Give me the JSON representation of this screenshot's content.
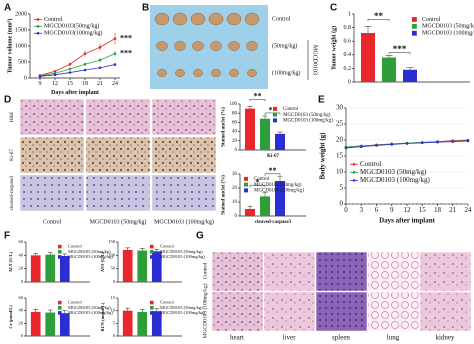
{
  "panel_letters": [
    "A",
    "B",
    "C",
    "D",
    "E",
    "F",
    "G"
  ],
  "photos": {
    "B": {
      "rows": [
        "Control",
        "(50mg/kg)",
        "(100mg/kg)"
      ],
      "group": "MGCD0103"
    },
    "D": {
      "rows": [
        "H&E",
        "Ki-67",
        "cleaved-caspase3"
      ],
      "columns": [
        "Control",
        "MGCD0103 (50mg/kg)",
        "MGCD0103 (100mg/kg)"
      ]
    },
    "G": {
      "rows": [
        "Control",
        "MGCD0103 (100mg/kg)"
      ],
      "columns": [
        "heart",
        "liver",
        "spleen",
        "lung",
        "kidney"
      ]
    }
  },
  "chart_data": [
    {
      "type": "line",
      "ylabel": "Tumor volume (mm³)",
      "xlabel": "Days after implant",
      "x": [
        9,
        12,
        15,
        18,
        21,
        24
      ],
      "xlim": [
        7,
        25
      ],
      "xticks": [
        9,
        12,
        15,
        18,
        21,
        24
      ],
      "ylim": [
        0,
        2000
      ],
      "yticks": [
        0,
        500,
        1000,
        1500,
        2000
      ],
      "legend": "upper left",
      "annotations": [
        "***",
        "***"
      ],
      "series": [
        {
          "name": "Control",
          "color": "#e8262b",
          "values": [
            80,
            210,
            430,
            760,
            960,
            1230
          ],
          "errors": [
            15,
            30,
            60,
            90,
            110,
            180
          ]
        },
        {
          "name": "MGCD0103(50mg/kg)",
          "color": "#2e9e3a",
          "values": [
            60,
            150,
            280,
            430,
            560,
            760
          ],
          "errors": [
            10,
            20,
            40,
            50,
            60,
            80
          ]
        },
        {
          "name": "MGCD0103(100mg/kg)",
          "color": "#2b2fd1",
          "values": [
            50,
            100,
            170,
            250,
            320,
            420
          ],
          "errors": [
            8,
            15,
            20,
            30,
            40,
            50
          ]
        }
      ]
    },
    {
      "type": "bar",
      "ylabel": "Tumor weight (g)",
      "ylim": [
        0,
        1
      ],
      "yticks": [
        0,
        0.2,
        0.4,
        0.6,
        0.8,
        1
      ],
      "legend": "upper right",
      "annotations": [
        "**",
        "***"
      ],
      "series": [
        {
          "name": "Control",
          "color": "#e8262b",
          "values": [
            0.72
          ],
          "errors": [
            0.1
          ]
        },
        {
          "name": "MGCD0103 (50mg/kg)",
          "color": "#2e9e3a",
          "values": [
            0.36
          ],
          "errors": [
            0.03
          ]
        },
        {
          "name": "MGCD0103 (100mg/kg)",
          "color": "#2b2fd1",
          "values": [
            0.18
          ],
          "errors": [
            0.03
          ]
        }
      ]
    },
    {
      "type": "bar",
      "ylabel": "Stained nuclei (%)",
      "xlabel": "Ki-67",
      "ylim": [
        0,
        100
      ],
      "yticks": [
        0,
        20,
        40,
        60,
        80,
        100
      ],
      "legend": "upper right",
      "annotations": [
        "**",
        "**"
      ],
      "series": [
        {
          "name": "Control",
          "color": "#e8262b",
          "values": [
            90
          ],
          "errors": [
            5
          ]
        },
        {
          "name": "MGCD0103 (50mg/kg)",
          "color": "#2e9e3a",
          "values": [
            68
          ],
          "errors": [
            6
          ]
        },
        {
          "name": "MGCD0103 (100mg/kg)",
          "color": "#2b2fd1",
          "values": [
            35
          ],
          "errors": [
            4
          ]
        }
      ]
    },
    {
      "type": "bar",
      "ylabel": "Stained nuclei (%)",
      "xlabel": "cleaved-caspase3",
      "ylim": [
        0,
        30
      ],
      "yticks": [
        0,
        10,
        20,
        30
      ],
      "legend": "upper left",
      "annotations": [
        "*",
        "**"
      ],
      "series": [
        {
          "name": "Control",
          "color": "#e8262b",
          "values": [
            5
          ],
          "errors": [
            2
          ]
        },
        {
          "name": "MGCD0103 (50mg/kg)",
          "color": "#2e9e3a",
          "values": [
            14
          ],
          "errors": [
            3
          ]
        },
        {
          "name": "MGCD0103 (100mg/kg)",
          "color": "#2b2fd1",
          "values": [
            25
          ],
          "errors": [
            3
          ]
        }
      ]
    },
    {
      "type": "line",
      "ylabel": "Body weight (g)",
      "xlabel": "Days after implant",
      "x": [
        0,
        3,
        6,
        9,
        12,
        15,
        18,
        21,
        24
      ],
      "xlim": [
        0,
        24
      ],
      "xticks": [
        0,
        3,
        6,
        9,
        12,
        15,
        18,
        21,
        24
      ],
      "ylim": [
        0,
        30
      ],
      "yticks": [
        0,
        5,
        10,
        15,
        20,
        25,
        30
      ],
      "legend": "lower left",
      "grid": true,
      "series": [
        {
          "name": "Control",
          "color": "#e8262b",
          "values": [
            17.5,
            18,
            18.5,
            18.8,
            19,
            19.2,
            19.5,
            19.8,
            20
          ]
        },
        {
          "name": "MGCD0103 (50mg/kg)",
          "color": "#2e9e3a",
          "values": [
            17.8,
            18.2,
            18.4,
            18.7,
            19,
            19.3,
            19.5,
            19.6,
            19.8
          ]
        },
        {
          "name": "MGCD0103 (100mg/kg)",
          "color": "#2b2fd1",
          "values": [
            17.6,
            17.9,
            18.3,
            18.6,
            18.9,
            19.1,
            19.3,
            19.5,
            19.7
          ]
        }
      ]
    },
    {
      "type": "bar",
      "ylabel": "ALT (U/L)",
      "ylim": [
        0,
        60
      ],
      "yticks": [
        0,
        20,
        40,
        60
      ],
      "legend": "upper right",
      "series": [
        {
          "name": "Control",
          "color": "#e8262b",
          "values": [
            40
          ],
          "errors": [
            3
          ]
        },
        {
          "name": "MGCD0103 (50mg/kg)",
          "color": "#2e9e3a",
          "values": [
            41
          ],
          "errors": [
            3
          ]
        },
        {
          "name": "MGCD0103 (100mg/kg)",
          "color": "#2b2fd1",
          "values": [
            39
          ],
          "errors": [
            3
          ]
        }
      ]
    },
    {
      "type": "bar",
      "ylabel": "AST (U/L)",
      "ylim": [
        0,
        150
      ],
      "yticks": [
        0,
        50,
        100,
        150
      ],
      "legend": "upper right",
      "series": [
        {
          "name": "Control",
          "color": "#e8262b",
          "values": [
            120
          ],
          "errors": [
            8
          ]
        },
        {
          "name": "MGCD0103 (50mg/kg)",
          "color": "#2e9e3a",
          "values": [
            118
          ],
          "errors": [
            8
          ]
        },
        {
          "name": "MGCD0103 (100mg/kg)",
          "color": "#2b2fd1",
          "values": [
            115
          ],
          "errors": [
            8
          ]
        }
      ]
    },
    {
      "type": "bar",
      "ylabel": "Cr (µmol/L)",
      "ylim": [
        0,
        60
      ],
      "yticks": [
        0,
        20,
        40,
        60
      ],
      "legend": "upper right",
      "series": [
        {
          "name": "Control",
          "color": "#e8262b",
          "values": [
            38
          ],
          "errors": [
            4
          ]
        },
        {
          "name": "MGCD0103 (50mg/kg)",
          "color": "#2e9e3a",
          "values": [
            37
          ],
          "errors": [
            4
          ]
        },
        {
          "name": "MGCD0103 (100mg/kg)",
          "color": "#2b2fd1",
          "values": [
            36
          ],
          "errors": [
            4
          ]
        }
      ]
    },
    {
      "type": "bar",
      "ylabel": "BUN (mmol/L)",
      "ylim": [
        0,
        15
      ],
      "yticks": [
        0,
        5,
        10,
        15
      ],
      "legend": "upper right",
      "series": [
        {
          "name": "Control",
          "color": "#e8262b",
          "values": [
            10
          ],
          "errors": [
            1
          ]
        },
        {
          "name": "MGCD0103 (50mg/kg)",
          "color": "#2e9e3a",
          "values": [
            9.5
          ],
          "errors": [
            1
          ]
        },
        {
          "name": "MGCD0103 (100mg/kg)",
          "color": "#2b2fd1",
          "values": [
            9.8
          ],
          "errors": [
            1
          ]
        }
      ]
    }
  ]
}
